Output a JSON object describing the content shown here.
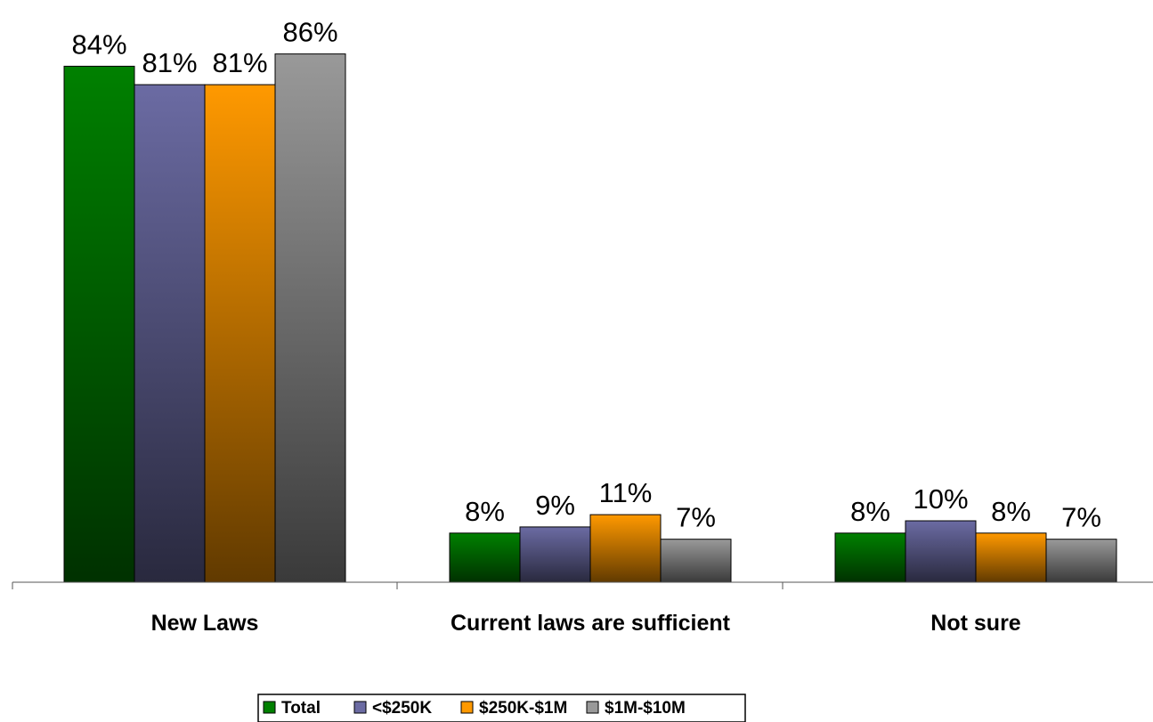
{
  "chart_data": {
    "type": "bar",
    "title": "",
    "xlabel": "",
    "ylabel": "",
    "ylim": [
      0,
      100
    ],
    "grid": false,
    "legend_position": "bottom",
    "categories": [
      "New Laws",
      "Current laws are sufficient",
      "Not sure"
    ],
    "series": [
      {
        "name": "Total",
        "values": [
          84,
          8,
          8
        ],
        "labels": [
          "84%",
          "8%",
          "8%"
        ],
        "color": "#008000"
      },
      {
        "name": "<$250K",
        "values": [
          81,
          9,
          10
        ],
        "labels": [
          "81%",
          "9%",
          "10%"
        ],
        "color": "#6b6ba3"
      },
      {
        "name": "$250K-$1M",
        "values": [
          81,
          11,
          8
        ],
        "labels": [
          "81%",
          "11%",
          "8%"
        ],
        "color": "#ff9900"
      },
      {
        "name": "$1M-$10M",
        "values": [
          86,
          7,
          7
        ],
        "labels": [
          "86%",
          "7%",
          "7%"
        ],
        "color": "#999999"
      }
    ]
  }
}
